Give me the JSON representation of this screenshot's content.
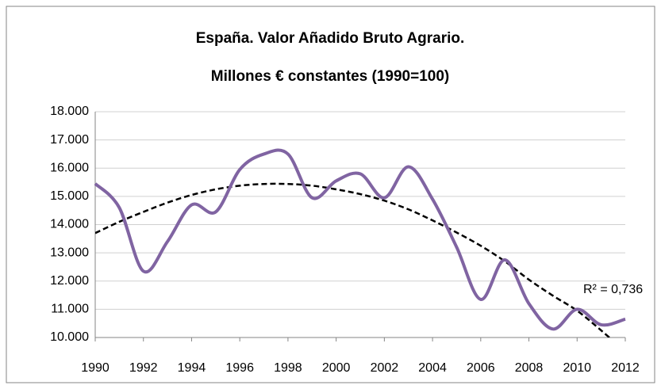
{
  "chart_data": {
    "type": "line",
    "title": "España. Valor Añadido Bruto Agrario.",
    "subtitle": "Millones € constantes (1990=100)",
    "x": [
      1990,
      1991,
      1992,
      1993,
      1994,
      1995,
      1996,
      1997,
      1998,
      1999,
      2000,
      2001,
      2002,
      2003,
      2004,
      2005,
      2006,
      2007,
      2008,
      2009,
      2010,
      2011,
      2012
    ],
    "series": [
      {
        "color": "#8064a2",
        "values": [
          15450,
          14600,
          12350,
          13400,
          14700,
          14450,
          15950,
          16500,
          16500,
          14950,
          15550,
          15800,
          14950,
          16050,
          14900,
          13200,
          11350,
          12750,
          11200,
          10300,
          11000,
          10450,
          10650
        ]
      }
    ],
    "trendline": {
      "color": "#000000",
      "label": "R² = 0,736",
      "values": [
        13700,
        14100,
        14450,
        14780,
        15050,
        15250,
        15380,
        15440,
        15440,
        15380,
        15250,
        15080,
        14850,
        14540,
        14150,
        13720,
        13250,
        12700,
        12050,
        11480,
        10950,
        10250,
        9500
      ]
    },
    "xlim": [
      1990,
      2012
    ],
    "xticks": [
      1990,
      1992,
      1994,
      1996,
      1998,
      2000,
      2002,
      2004,
      2006,
      2008,
      2010,
      2012
    ],
    "ylim": [
      10000,
      18000
    ],
    "yticks": [
      {
        "value": 10000,
        "label": "10.000"
      },
      {
        "value": 11000,
        "label": "11.000"
      },
      {
        "value": 12000,
        "label": "12.000"
      },
      {
        "value": 13000,
        "label": "13.000"
      },
      {
        "value": 14000,
        "label": "14.000"
      },
      {
        "value": 15000,
        "label": "15.000"
      },
      {
        "value": 16000,
        "label": "16.000"
      },
      {
        "value": 17000,
        "label": "17.000"
      },
      {
        "value": 18000,
        "label": "18.000"
      }
    ],
    "grid": true
  }
}
